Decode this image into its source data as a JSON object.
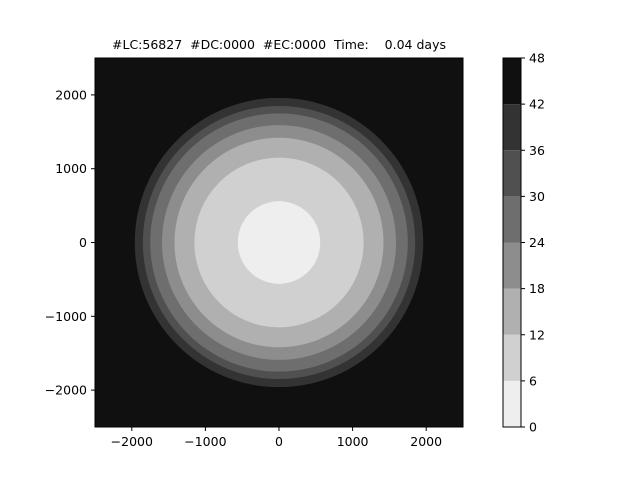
{
  "chart_data": {
    "type": "heatmap",
    "subtype": "filled-contour",
    "title": "#LC:56827  #DC:0000  #EC:0000  Time:    0.04 days",
    "xlabel": "",
    "ylabel": "",
    "xlim": [
      -2500,
      2500
    ],
    "ylim": [
      -2500,
      2500
    ],
    "xticks": [
      -2000,
      -1000,
      0,
      1000,
      2000
    ],
    "yticks": [
      -2000,
      -1000,
      0,
      1000,
      2000
    ],
    "xtick_labels": [
      "−2000",
      "−1000",
      "0",
      "1000",
      "2000"
    ],
    "ytick_labels": [
      "−2000",
      "−1000",
      "0",
      "1000",
      "2000"
    ],
    "grid": false,
    "center": [
      0,
      0
    ],
    "levels": [
      0,
      6,
      12,
      18,
      24,
      30,
      36,
      42,
      48
    ],
    "level_labels": [
      "0",
      "6",
      "12",
      "18",
      "24",
      "30",
      "36",
      "42",
      "48"
    ],
    "level_colors": [
      "#eeeeee",
      "#d0d0d0",
      "#b0b0b0",
      "#8d8d8d",
      "#6e6e6e",
      "#505050",
      "#333333",
      "#101010"
    ],
    "bands": [
      {
        "min": 0,
        "max": 6,
        "outer_radius": 560
      },
      {
        "min": 6,
        "max": 12,
        "outer_radius": 1150
      },
      {
        "min": 12,
        "max": 18,
        "outer_radius": 1420
      },
      {
        "min": 18,
        "max": 24,
        "outer_radius": 1590
      },
      {
        "min": 24,
        "max": 30,
        "outer_radius": 1750
      },
      {
        "min": 30,
        "max": 36,
        "outer_radius": 1850
      },
      {
        "min": 36,
        "max": 42,
        "outer_radius": 1960
      },
      {
        "min": 42,
        "max": 48,
        "outer_radius": null
      }
    ],
    "colorbar": {
      "position": "right",
      "min": 0,
      "max": 48,
      "ticks": [
        0,
        6,
        12,
        18,
        24,
        30,
        36,
        42,
        48
      ]
    }
  }
}
